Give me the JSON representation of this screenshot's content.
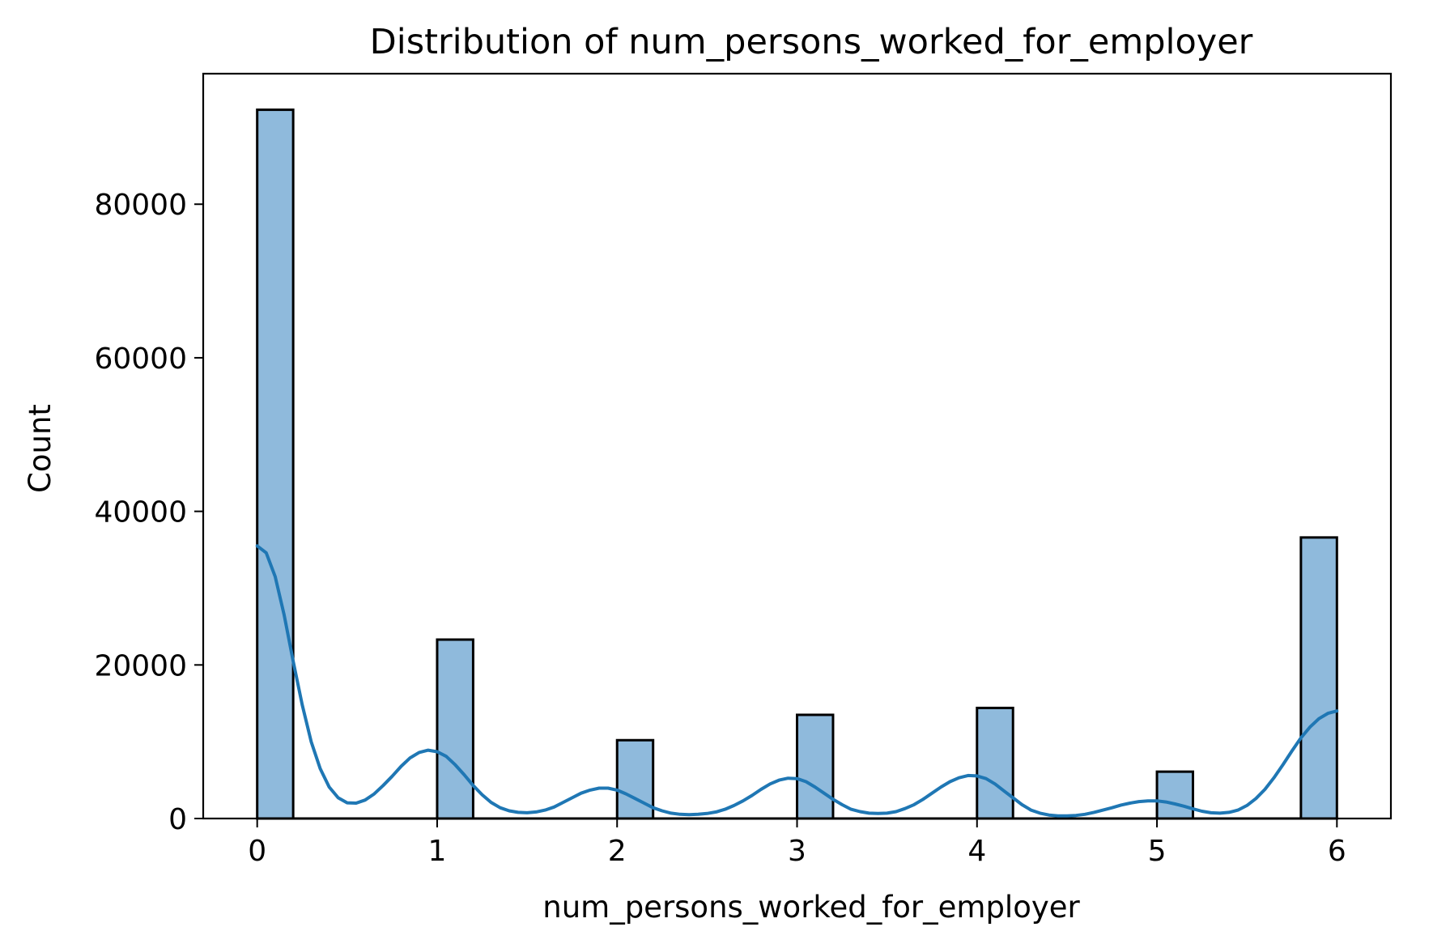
{
  "chart_data": {
    "type": "bar",
    "title": "Distribution of num_persons_worked_for_employer",
    "xlabel": "num_persons_worked_for_employer",
    "ylabel": "Count",
    "xlim": [
      -0.3,
      6.3
    ],
    "ylim": [
      0,
      97000
    ],
    "xticks": [
      0,
      1,
      2,
      3,
      4,
      5,
      6
    ],
    "yticks": [
      0,
      20000,
      40000,
      60000,
      80000
    ],
    "bin_width": 0.2,
    "bars": [
      {
        "x_start": 0.0,
        "x_end": 0.2,
        "count": 92300
      },
      {
        "x_start": 1.0,
        "x_end": 1.2,
        "count": 23300
      },
      {
        "x_start": 2.0,
        "x_end": 2.2,
        "count": 10200
      },
      {
        "x_start": 3.0,
        "x_end": 3.2,
        "count": 13500
      },
      {
        "x_start": 4.0,
        "x_end": 4.2,
        "count": 14400
      },
      {
        "x_start": 5.0,
        "x_end": 5.2,
        "count": 6100
      },
      {
        "x_start": 5.8,
        "x_end": 6.0,
        "count": 36600
      }
    ],
    "kde": {
      "x": [
        0,
        0.05,
        0.1,
        0.15,
        0.2,
        0.25,
        0.3,
        0.35,
        0.4,
        0.45,
        0.5,
        0.55,
        0.6,
        0.65,
        0.7,
        0.75,
        0.8,
        0.85,
        0.9,
        0.95,
        1.0,
        1.05,
        1.1,
        1.15,
        1.2,
        1.25,
        1.3,
        1.35,
        1.4,
        1.45,
        1.5,
        1.55,
        1.6,
        1.65,
        1.7,
        1.75,
        1.8,
        1.85,
        1.9,
        1.95,
        2.0,
        2.05,
        2.1,
        2.15,
        2.2,
        2.25,
        2.3,
        2.35,
        2.4,
        2.45,
        2.5,
        2.55,
        2.6,
        2.65,
        2.7,
        2.75,
        2.8,
        2.85,
        2.9,
        2.95,
        3.0,
        3.05,
        3.1,
        3.15,
        3.2,
        3.25,
        3.3,
        3.35,
        3.4,
        3.45,
        3.5,
        3.55,
        3.6,
        3.65,
        3.7,
        3.75,
        3.8,
        3.85,
        3.9,
        3.95,
        4.0,
        4.05,
        4.1,
        4.15,
        4.2,
        4.25,
        4.3,
        4.35,
        4.4,
        4.45,
        4.5,
        4.55,
        4.6,
        4.65,
        4.7,
        4.75,
        4.8,
        4.85,
        4.9,
        4.95,
        5.0,
        5.05,
        5.1,
        5.15,
        5.2,
        5.25,
        5.3,
        5.35,
        5.4,
        5.45,
        5.5,
        5.55,
        5.6,
        5.65,
        5.7,
        5.75,
        5.8,
        5.85,
        5.9,
        5.95,
        6.0
      ],
      "y": [
        35500,
        34600,
        31500,
        26500,
        20500,
        14800,
        10000,
        6500,
        4100,
        2700,
        2050,
        2000,
        2400,
        3200,
        4300,
        5500,
        6800,
        7900,
        8600,
        8900,
        8700,
        8100,
        7000,
        5700,
        4300,
        3100,
        2100,
        1400,
        1000,
        800,
        750,
        850,
        1100,
        1500,
        2100,
        2700,
        3300,
        3700,
        3950,
        3950,
        3700,
        3200,
        2600,
        2000,
        1400,
        1000,
        700,
        550,
        500,
        550,
        650,
        850,
        1200,
        1700,
        2300,
        3000,
        3800,
        4500,
        5000,
        5250,
        5200,
        4800,
        4100,
        3300,
        2500,
        1800,
        1200,
        900,
        700,
        650,
        700,
        900,
        1300,
        1800,
        2500,
        3300,
        4100,
        4800,
        5300,
        5600,
        5550,
        5200,
        4500,
        3600,
        2700,
        1800,
        1100,
        700,
        450,
        350,
        350,
        400,
        550,
        800,
        1100,
        1400,
        1750,
        2000,
        2200,
        2300,
        2300,
        2150,
        1900,
        1600,
        1250,
        950,
        750,
        700,
        800,
        1100,
        1700,
        2600,
        3800,
        5300,
        7000,
        8800,
        10500,
        11900,
        13000,
        13700,
        14000
      ]
    },
    "legend": "none",
    "grid": false,
    "colors": {
      "bar_fill": "#8fbadc",
      "bar_edge": "#000000",
      "kde_line": "#1f77b4",
      "background": "#ffffff"
    }
  }
}
